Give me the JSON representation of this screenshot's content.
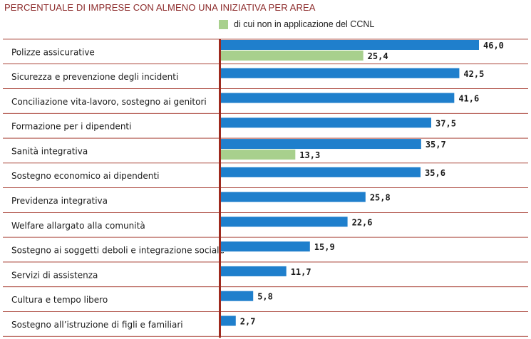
{
  "chart_data": {
    "type": "bar",
    "orientation": "horizontal",
    "title": "PERCENTUALE DI IMPRESE CON ALMENO UNA INIZIATIVA PER AREA",
    "xlim": [
      0,
      48
    ],
    "categories": [
      "Polizze assicurative",
      "Sicurezza e prevenzione degli incidenti",
      "Conciliazione vita-lavoro, sostegno ai genitori",
      "Formazione per i dipendenti",
      "Sanità integrativa",
      "Sostegno economico ai dipendenti",
      "Previdenza integrativa",
      "Welfare allargato alla comunità",
      "Sostegno ai soggetti deboli e integrazione sociale",
      "Servizi di assistenza",
      "Cultura e tempo libero",
      "Sostegno all’istruzione di figli e familiari"
    ],
    "series": [
      {
        "color": "#1f7fcc",
        "values": [
          46.0,
          42.5,
          41.6,
          37.5,
          35.7,
          35.6,
          25.8,
          22.6,
          15.9,
          11.7,
          5.8,
          2.7
        ],
        "labels": [
          "46,0",
          "42,5",
          "41,6",
          "37,5",
          "35,7",
          "35,6",
          "25,8",
          "22,6",
          "15,9",
          "11,7",
          "5,8",
          "2,7"
        ]
      },
      {
        "name": "di cui non in applicazione del CCNL",
        "color": "#a8d08d",
        "values": [
          25.4,
          null,
          null,
          null,
          13.3,
          null,
          null,
          null,
          null,
          null,
          null,
          null
        ],
        "labels": [
          "25,4",
          null,
          null,
          null,
          "13,3",
          null,
          null,
          null,
          null,
          null,
          null,
          null
        ]
      }
    ],
    "legend": "top",
    "grid": false
  },
  "colors": {
    "axis": "#9e2a1e",
    "separator": "#9e2a1e",
    "title": "#8c2a2a"
  }
}
